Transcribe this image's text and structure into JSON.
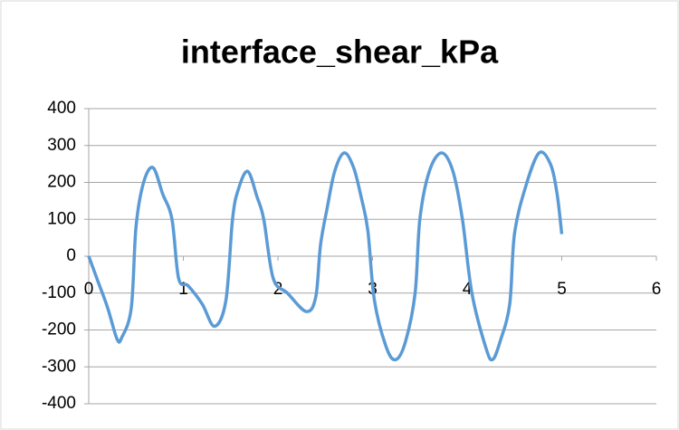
{
  "chart_data": {
    "type": "line",
    "title": "interface_shear_kPa",
    "x": [
      0,
      0.1,
      0.2,
      0.3,
      0.35,
      0.45,
      0.5,
      0.58,
      0.68,
      0.78,
      0.88,
      0.95,
      1.05,
      1.2,
      1.33,
      1.45,
      1.52,
      1.58,
      1.68,
      1.78,
      1.85,
      1.95,
      2.1,
      2.3,
      2.4,
      2.45,
      2.52,
      2.6,
      2.7,
      2.8,
      2.88,
      2.95,
      3.02,
      3.15,
      3.25,
      3.35,
      3.45,
      3.5,
      3.6,
      3.73,
      3.85,
      3.95,
      4.05,
      4.2,
      4.27,
      4.35,
      4.45,
      4.5,
      4.62,
      4.76,
      4.88,
      4.95,
      5.0
    ],
    "series": [
      {
        "name": "interface_shear_kPa",
        "color": "#5b9bd5",
        "values": [
          0,
          -70,
          -140,
          -225,
          -220,
          -140,
          80,
          200,
          240,
          170,
          100,
          -60,
          -80,
          -130,
          -190,
          -120,
          100,
          180,
          230,
          160,
          100,
          -60,
          -100,
          -150,
          -110,
          30,
          130,
          230,
          280,
          240,
          160,
          70,
          -120,
          -250,
          -280,
          -230,
          -100,
          100,
          230,
          280,
          230,
          100,
          -100,
          -250,
          -280,
          -230,
          -130,
          60,
          190,
          280,
          250,
          170,
          60
        ]
      }
    ],
    "xlim": [
      0,
      6
    ],
    "xticks": [
      0,
      1,
      2,
      3,
      4,
      5,
      6
    ],
    "ylim": [
      -400,
      400
    ],
    "yticks": [
      -400,
      -300,
      -200,
      -100,
      0,
      100,
      200,
      300,
      400
    ],
    "grid": true
  }
}
